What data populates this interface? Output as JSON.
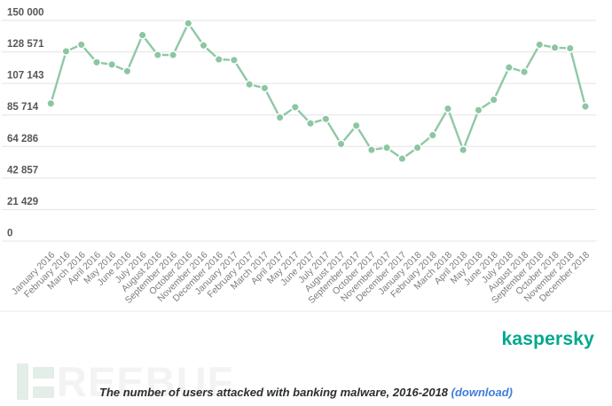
{
  "chart_data": {
    "type": "line",
    "title": "The number of users attacked with banking malware, 2016-2018",
    "categories": [
      "January 2016",
      "February 2016",
      "March 2016",
      "April 2016",
      "May 2016",
      "June 2016",
      "July 2016",
      "August 2016",
      "September 2016",
      "October 2016",
      "November 2016",
      "December 2016",
      "January 2017",
      "February 2017",
      "March 2017",
      "April 2017",
      "May 2017",
      "June 2017",
      "July 2017",
      "August 2017",
      "September 2017",
      "October 2017",
      "November 2017",
      "December 2017",
      "January 2018",
      "February 2018",
      "March 2018",
      "April 2018",
      "May 2018",
      "June 2018",
      "July 2018",
      "August 2018",
      "September 2018",
      "October 2018",
      "November 2018",
      "December 2018"
    ],
    "values": [
      93500,
      129000,
      133500,
      121500,
      120000,
      115500,
      140000,
      126500,
      126500,
      148000,
      133000,
      123500,
      123000,
      106500,
      104000,
      84000,
      91000,
      80000,
      83000,
      66000,
      78500,
      62000,
      63500,
      56000,
      63500,
      72000,
      90000,
      62000,
      89000,
      96000,
      118000,
      115000,
      133500,
      131500,
      131000,
      91500
    ],
    "y_ticks": [
      0,
      21429,
      42857,
      64286,
      85714,
      107143,
      128571,
      150000
    ],
    "y_tick_labels": [
      "0",
      "21 429",
      "42 857",
      "64 286",
      "85 714",
      "107 143",
      "128 571",
      "150 000"
    ],
    "ylim": [
      0,
      150000
    ],
    "grid": true,
    "legend": false,
    "marker": "circle"
  },
  "footer": {
    "brand": "kaspersky",
    "watermark_letters": "REEBUF",
    "download_label": "(download)"
  },
  "colors": {
    "line": "#8fc8a5",
    "marker": "#8cc6a2",
    "grid": "#e3e3e3",
    "separator": "#e8e8e8",
    "y_label": "#56575b",
    "x_label": "#7b7d80",
    "brand": "#00a88e",
    "caption": "#2d2d2f",
    "link": "#3d7edb",
    "watermark_bar": "#e2eee7",
    "watermark_text": "#f3f3f3"
  }
}
